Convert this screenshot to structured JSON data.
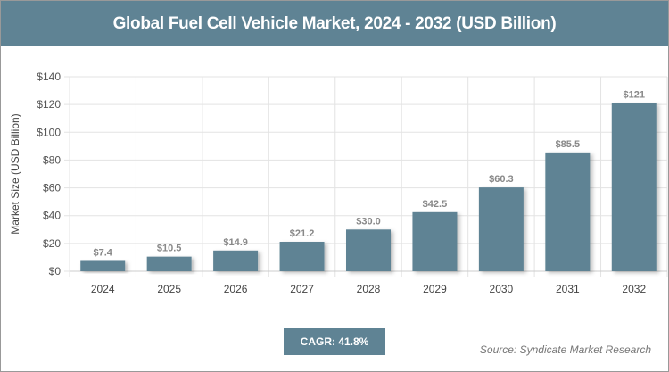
{
  "chart_data": {
    "type": "bar",
    "title": "Global Fuel Cell Vehicle Market, 2024 - 2032 (USD Billion)",
    "xlabel": "",
    "ylabel": "Market Size (USD Billion)",
    "categories": [
      "2024",
      "2025",
      "2026",
      "2027",
      "2028",
      "2029",
      "2030",
      "2031",
      "2032"
    ],
    "values": [
      7.4,
      10.5,
      14.9,
      21.2,
      30.0,
      42.5,
      60.3,
      85.5,
      121
    ],
    "data_labels": [
      "$7.4",
      "$10.5",
      "$14.9",
      "$21.2",
      "$30.0",
      "$42.5",
      "$60.3",
      "$85.5",
      "$121"
    ],
    "ylim": [
      0,
      140
    ],
    "yticks": [
      0,
      20,
      40,
      60,
      80,
      100,
      120,
      140
    ],
    "ytick_labels": [
      "$0",
      "$20",
      "$40",
      "$60",
      "$80",
      "$100",
      "$120",
      "$140"
    ],
    "grid": true,
    "bar_color": "#5f8394"
  },
  "cagr": "CAGR: 41.8%",
  "source": "Source: Syndicate Market Research"
}
